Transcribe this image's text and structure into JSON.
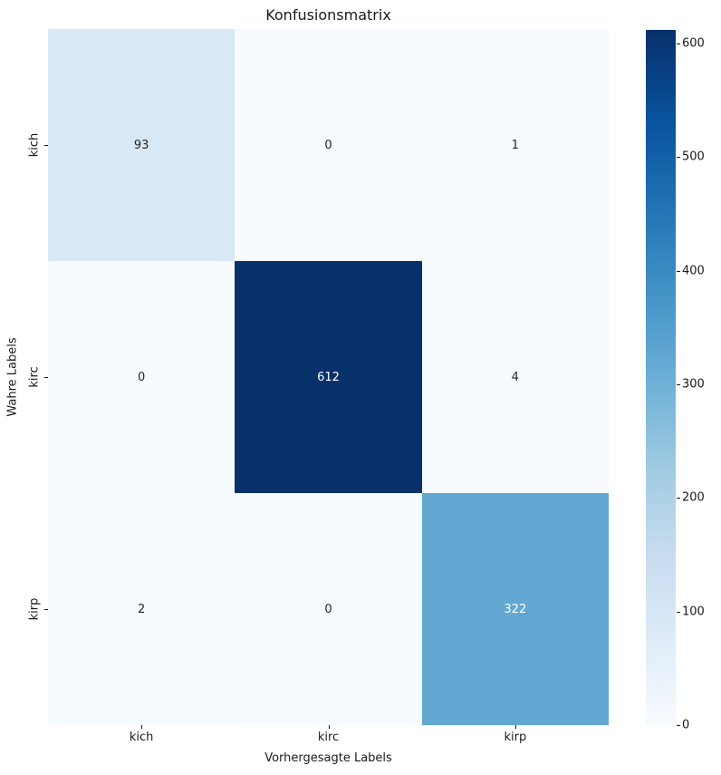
{
  "chart_data": {
    "type": "heatmap",
    "title": "Konfusionsmatrix",
    "xlabel": "Vorhergesagte Labels",
    "ylabel": "Wahre Labels",
    "x_categories": [
      "kich",
      "kirc",
      "kirp"
    ],
    "y_categories": [
      "kich",
      "kirc",
      "kirp"
    ],
    "matrix": [
      [
        93,
        0,
        1
      ],
      [
        0,
        612,
        4
      ],
      [
        2,
        0,
        322
      ]
    ],
    "vmin": 0,
    "vmax": 612,
    "colormap": "Blues",
    "colorbar_ticks": [
      0,
      100,
      200,
      300,
      400,
      500,
      600
    ],
    "colorbar_position": "right",
    "grid": false,
    "annotations": true,
    "cmap_stops": [
      [
        0,
        "#f7fbff"
      ],
      [
        0.125,
        "#deebf7"
      ],
      [
        0.25,
        "#c6dbef"
      ],
      [
        0.375,
        "#9ecae1"
      ],
      [
        0.5,
        "#6baed6"
      ],
      [
        0.625,
        "#4292c6"
      ],
      [
        0.75,
        "#2171b5"
      ],
      [
        0.875,
        "#08519c"
      ],
      [
        1,
        "#08306b"
      ]
    ],
    "colors": {
      "background": "#ffffff",
      "annotation_dark": "#262626",
      "annotation_light": "#ffffff",
      "tick": "#1a1a1a",
      "cmap_min": "#f7fbff",
      "cmap_max": "#08306b"
    }
  }
}
